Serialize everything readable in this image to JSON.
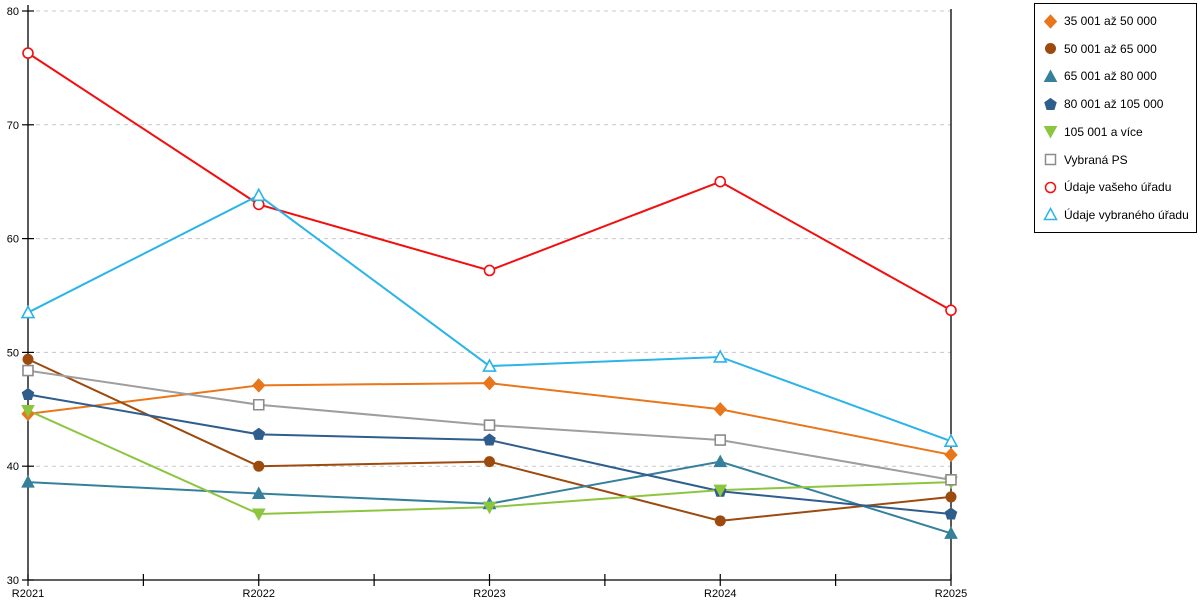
{
  "chart_data": {
    "type": "line",
    "x_categories": [
      "R2021",
      "R2022",
      "R2023",
      "R2024",
      "R2025"
    ],
    "ylim": [
      30,
      80
    ],
    "y_ticks": [
      30,
      40,
      50,
      60,
      70,
      80
    ],
    "grid": "horizontal dashed gridlines at 40,50,60,70,80",
    "legend_position": "outside top-right, boxed",
    "axis_color": "#000000",
    "gridline_color": "#c8c8c8",
    "series": [
      {
        "name": "35 001 až 50 000",
        "marker": "diamond",
        "filled": true,
        "color": "#e8761b",
        "values": [
          44.6,
          47.1,
          47.3,
          45.0,
          41.0
        ]
      },
      {
        "name": "50 001 až 65 000",
        "marker": "circle",
        "filled": true,
        "color": "#9c4a0e",
        "values": [
          49.4,
          40.0,
          40.4,
          35.2,
          37.3
        ]
      },
      {
        "name": "65 001 až 80 000",
        "marker": "triangle-up",
        "filled": true,
        "color": "#35809b",
        "values": [
          38.6,
          37.6,
          36.7,
          40.4,
          34.1
        ]
      },
      {
        "name": "80 001 až 105 000",
        "marker": "pentagon",
        "filled": true,
        "color": "#2f5d8c",
        "values": [
          46.3,
          42.8,
          42.3,
          37.8,
          35.8
        ]
      },
      {
        "name": "105 001 a více",
        "marker": "triangle-down",
        "filled": true,
        "color": "#8cc63f",
        "values": [
          44.9,
          35.8,
          36.4,
          37.9,
          38.6
        ]
      },
      {
        "name": "Vybraná PS",
        "marker": "square",
        "filled": false,
        "color": "#8c8c8c",
        "line_color": "#9e9e9e",
        "values": [
          48.4,
          45.4,
          43.6,
          42.3,
          38.8
        ]
      },
      {
        "name": "Údaje vašeho úřadu",
        "marker": "circle",
        "filled": false,
        "color": "#f20f0f",
        "values": [
          76.3,
          63.0,
          57.2,
          65.0,
          53.7
        ]
      },
      {
        "name": "Údaje vybraného úřadu",
        "marker": "triangle-up",
        "filled": false,
        "color": "#2bb4e8",
        "values": [
          53.5,
          63.8,
          48.8,
          49.6,
          42.2
        ]
      }
    ]
  }
}
